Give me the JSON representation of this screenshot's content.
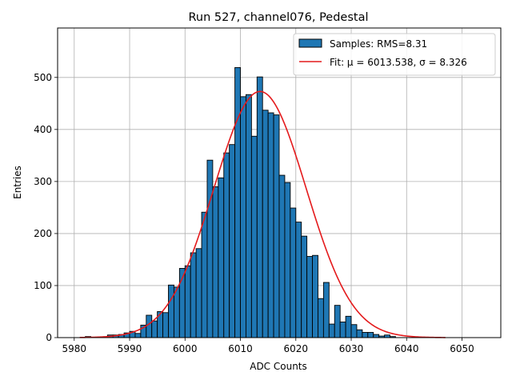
{
  "chart_data": {
    "type": "bar",
    "title": "Run 527, channel076, Pedestal",
    "xlabel": "ADC Counts",
    "ylabel": "Entries",
    "xlim": [
      5977,
      6057
    ],
    "ylim": [
      0,
      595
    ],
    "xticks": [
      5980,
      5990,
      6000,
      6010,
      6020,
      6030,
      6040,
      6050
    ],
    "yticks": [
      0,
      100,
      200,
      300,
      400,
      500
    ],
    "grid": true,
    "legend_position": "top-right",
    "histogram": {
      "name": "Samples: RMS=8.31",
      "color": "#1f77b4",
      "edgecolor": "#000000",
      "bin_start": 5981,
      "bin_width": 1,
      "counts": [
        0,
        2,
        0,
        0,
        1,
        5,
        5,
        6,
        9,
        12,
        8,
        24,
        43,
        32,
        50,
        48,
        101,
        97,
        133,
        138,
        163,
        171,
        241,
        341,
        290,
        307,
        355,
        371,
        519,
        463,
        467,
        387,
        501,
        437,
        432,
        428,
        312,
        298,
        249,
        222,
        195,
        156,
        158,
        75,
        106,
        26,
        62,
        30,
        41,
        25,
        15,
        10,
        10,
        6,
        3,
        5,
        2,
        0,
        0,
        0,
        1
      ],
      "extra_bar": {
        "x": 6052,
        "count": 0
      }
    },
    "fit": {
      "name": "Fit: μ = 6013.538, σ = 8.326",
      "color": "#e41a1c",
      "mu": 6013.538,
      "sigma": 8.326,
      "amplitude": 473,
      "x_range": [
        5981,
        6047
      ]
    }
  }
}
